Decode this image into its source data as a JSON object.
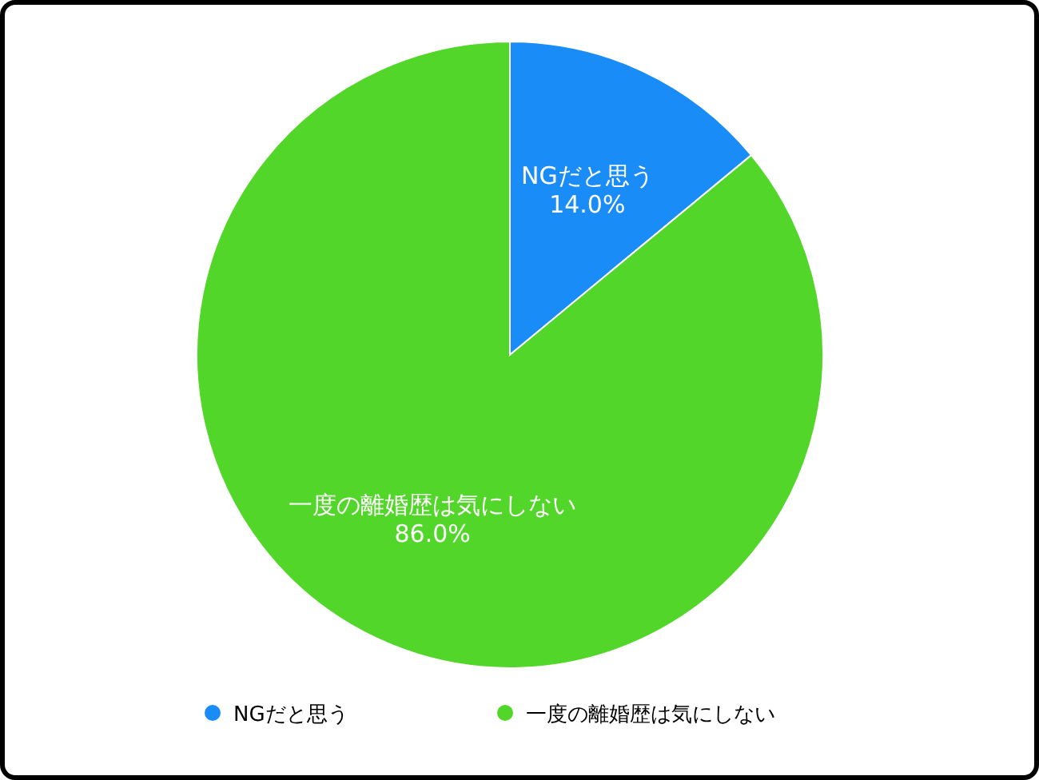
{
  "chart_data": {
    "type": "pie",
    "categories": [
      "NGだと思う",
      "一度の離婚歴は気にしない"
    ],
    "values": [
      14.0,
      86.0
    ],
    "colors": [
      "#1a8cf7",
      "#53d62a"
    ],
    "value_labels": [
      "14.0%",
      "86.0%"
    ],
    "legend": "bottom"
  }
}
